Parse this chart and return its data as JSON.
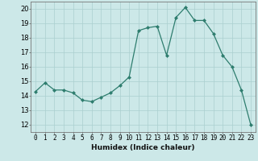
{
  "x": [
    0,
    1,
    2,
    3,
    4,
    5,
    6,
    7,
    8,
    9,
    10,
    11,
    12,
    13,
    14,
    15,
    16,
    17,
    18,
    19,
    20,
    21,
    22,
    23
  ],
  "y": [
    14.3,
    14.9,
    14.4,
    14.4,
    14.2,
    13.7,
    13.6,
    13.9,
    14.2,
    14.7,
    15.3,
    18.5,
    18.7,
    18.8,
    16.8,
    19.4,
    20.1,
    19.2,
    19.2,
    18.3,
    16.8,
    16.0,
    14.4,
    12.0
  ],
  "line_color": "#2e7d6e",
  "marker": "D",
  "marker_size": 2.0,
  "bg_color": "#cce8e8",
  "grid_color": "#aacfcf",
  "xlabel": "Humidex (Indice chaleur)",
  "ylabel_ticks": [
    12,
    13,
    14,
    15,
    16,
    17,
    18,
    19,
    20
  ],
  "xlim": [
    -0.5,
    23.5
  ],
  "ylim": [
    11.5,
    20.5
  ],
  "xlabel_fontsize": 6.5,
  "tick_fontsize": 5.5
}
